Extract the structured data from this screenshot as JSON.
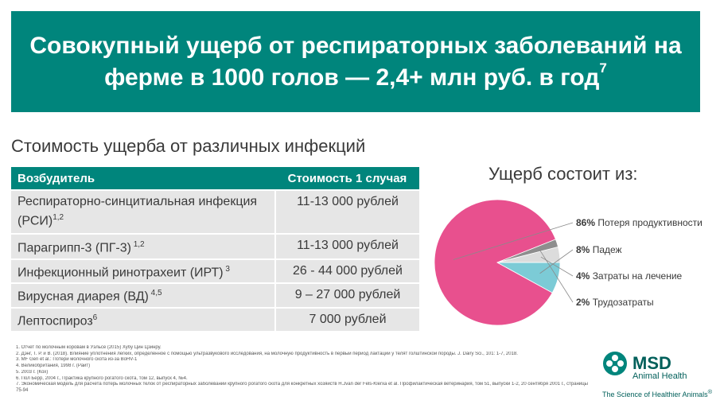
{
  "title": {
    "line1": "Совокупный ущерб от респираторных заболеваний на",
    "line2": "ферме в 1000 голов — 2,4+ млн руб. в год",
    "ref": "7"
  },
  "table_title": "Стоимость ущерба от различных инфекций",
  "table": {
    "headers": [
      "Возбудитель",
      "Стоимость 1 случая"
    ],
    "rows": [
      {
        "pathogen": "Респираторно-синцитиальная инфекция (РСИ)",
        "ref": "1,2",
        "cost": "11-13 000 рублей"
      },
      {
        "pathogen": "Парагрипп-3 (ПГ-3)",
        "ref": " 1,2",
        "cost": "11-13 000 рублей"
      },
      {
        "pathogen": "Инфекционный ринотрахеит (ИРТ)",
        "ref": " 3",
        "cost": "26 - 44 000 рублей"
      },
      {
        "pathogen": "Вирусная диарея (ВД)",
        "ref": " 4,5",
        "cost": "9 – 27 000 рублей"
      },
      {
        "pathogen": "Лептоспироз",
        "ref": "6",
        "cost": "7 000 рублей"
      }
    ]
  },
  "pie_title": "Ущерб состоит из:",
  "chart_data": {
    "type": "pie",
    "title": "Ущерб состоит из:",
    "legend_position": "right",
    "slices": [
      {
        "label": "Потеря продуктивности",
        "pct_label": "86%",
        "value": 86,
        "color": "#e8508e"
      },
      {
        "label": "Падеж",
        "pct_label": "8%",
        "value": 8,
        "color": "#7ccbd6"
      },
      {
        "label": "Затраты на лечение",
        "pct_label": "4%",
        "value": 4,
        "color": "#dcdcdc"
      },
      {
        "label": "Трудозатраты",
        "pct_label": "2%",
        "value": 2,
        "color": "#8e8e8e"
      }
    ]
  },
  "footnotes": [
    "1. Отчет по молочным коровам в Уэльсе (2015) Хубу Цин Цзинру.",
    "2. Дэнг, Т. Р. и В. (2018). Влияние уплотнения легких, определенное с помощью ультразвукового исследования, на молочную продуктивность в первый период лактации у телят голштинской породы. J. Dairy Sci., 101: 1-7, 2018.",
    "3. MF Gen et al.: Потери молочного скота из-за BoHV-1",
    "4. Великобритания, 1998 г. (Райт)",
    "5. 2003 г. (Кох)",
    "6. Пол Берр, 2004 г., Практика крупного рогатого скота, том 12, выпуск 4, №4.",
    "7. Экономическая модель для расчета потерь молочных телок от респираторных заболеваний крупного рогатого скота для конкретных хозяйств H.Jvan der Fels-Klerxa et al. Профилактическая ветеринария, том 51, выпуски 1-2, 20 сентября 2001 г., страницы 75-94"
  ],
  "logo": {
    "name": "MSD",
    "division": "Animal Health",
    "tagline": "The Science of Healthier Animals",
    "mark": "®",
    "icon": "msd-logo-icon",
    "color": "#005f5a"
  },
  "colors": {
    "accent": "#00857c",
    "row_bg": "#e6e6e6",
    "text": "#3a3a3a"
  }
}
